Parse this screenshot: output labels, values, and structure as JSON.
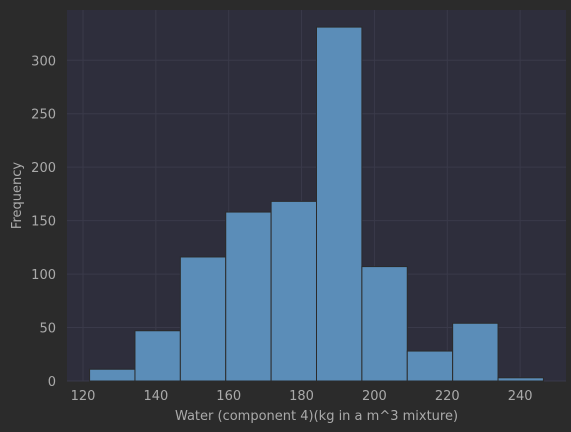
{
  "chart_data": {
    "type": "bar",
    "title": "",
    "xlabel": "Water  (component 4)(kg in a m^3 mixture)",
    "ylabel": "Frequency",
    "bin_edges": [
      121.8,
      134.26,
      146.72,
      159.18,
      171.64,
      184.1,
      196.56,
      209.02,
      221.48,
      233.94,
      246.4
    ],
    "values": [
      11,
      47,
      116,
      158,
      168,
      331,
      107,
      28,
      54,
      3
    ],
    "xlim": [
      115.6,
      252.6
    ],
    "ylim": [
      0,
      347
    ],
    "xticks": [
      "120",
      "140",
      "160",
      "180",
      "200",
      "220",
      "240"
    ],
    "xtick_values": [
      120,
      140,
      160,
      180,
      200,
      220,
      240
    ],
    "yticks": [
      "0",
      "50",
      "100",
      "150",
      "200",
      "250",
      "300"
    ],
    "ytick_values": [
      0,
      50,
      100,
      150,
      200,
      250,
      300
    ],
    "grid": true,
    "colors": {
      "bar": "#5b8db8",
      "plot_bg": "#2e2e3c",
      "page_bg": "#2b2b2b",
      "text": "#aaaaaa"
    }
  }
}
